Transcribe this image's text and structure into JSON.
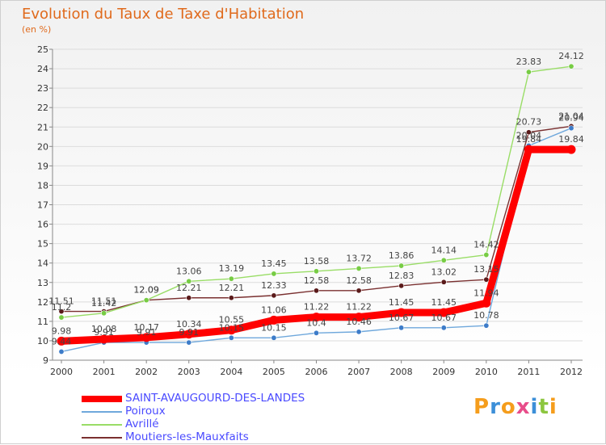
{
  "chart_data": {
    "type": "line",
    "title": "Evolution du Taux de Taxe d'Habitation",
    "unit_label": "(en %)",
    "xlabel": "",
    "ylabel": "",
    "x": [
      "2000",
      "2001",
      "2002",
      "2003",
      "2004",
      "2005",
      "2006",
      "2007",
      "2008",
      "2009",
      "2010",
      "2011",
      "2012"
    ],
    "ylim": [
      9,
      25
    ],
    "yticks": [
      9,
      10,
      11,
      12,
      13,
      14,
      15,
      16,
      17,
      18,
      19,
      20,
      21,
      22,
      23,
      24,
      25
    ],
    "series": [
      {
        "name": "SAINT-AVAUGOURD-DES-LANDES",
        "color": "#ff0000",
        "point_color": "#ff0000",
        "values": [
          9.98,
          10.08,
          10.17,
          10.34,
          10.55,
          11.06,
          11.22,
          11.22,
          11.45,
          11.45,
          11.94,
          19.84,
          19.84
        ]
      },
      {
        "name": "Poiroux",
        "color": "#6fa8dc",
        "point_color": "#3d7cc9",
        "values": [
          9.44,
          9.91,
          9.91,
          9.91,
          10.15,
          10.15,
          10.4,
          10.46,
          10.67,
          10.67,
          10.78,
          20.04,
          20.94
        ]
      },
      {
        "name": "Avrillé",
        "color": "#99dd66",
        "point_color": "#77cc44",
        "values": [
          11.2,
          11.42,
          12.09,
          13.06,
          13.19,
          13.45,
          13.58,
          13.72,
          13.86,
          14.14,
          14.42,
          23.83,
          24.12
        ]
      },
      {
        "name": "Moutiers-les-Mauxfaits",
        "color": "#7a3030",
        "point_color": "#5a1a1a",
        "values": [
          11.51,
          11.51,
          12.09,
          12.21,
          12.21,
          12.33,
          12.58,
          12.58,
          12.83,
          13.02,
          13.15,
          20.73,
          21.04
        ]
      }
    ]
  },
  "logo": {
    "letters": [
      "P",
      "r",
      "o",
      "x",
      "i",
      "t",
      "i"
    ],
    "colors": [
      "#f59d1c",
      "#3c8fd8",
      "#f59d1c",
      "#e84d8a",
      "#3c8fd8",
      "#8cc63f",
      "#f59d1c"
    ]
  }
}
